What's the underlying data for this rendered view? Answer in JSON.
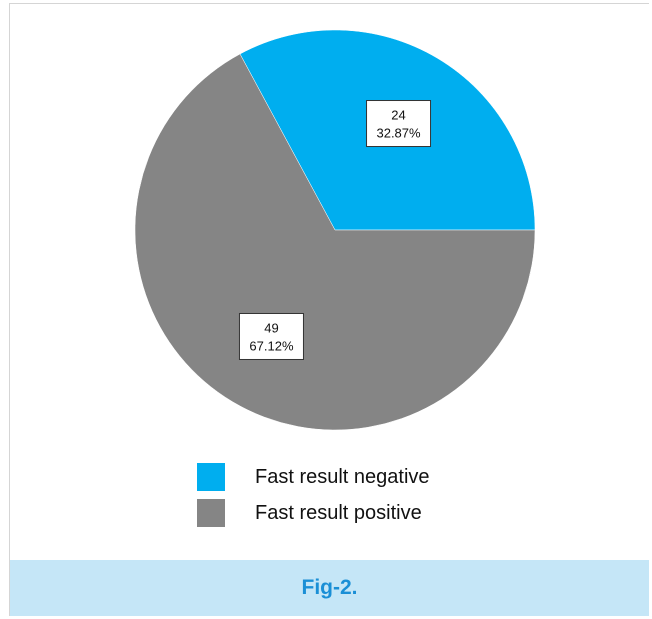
{
  "chart_data": {
    "type": "pie",
    "slices": [
      {
        "label": "Fast result negative",
        "value": 24,
        "percent": "32.87%",
        "color": "#00aeef"
      },
      {
        "label": "Fast result positive",
        "value": 49,
        "percent": "67.12%",
        "color": "#858585"
      }
    ],
    "legend_position": "bottom"
  },
  "caption": "Fig-2."
}
